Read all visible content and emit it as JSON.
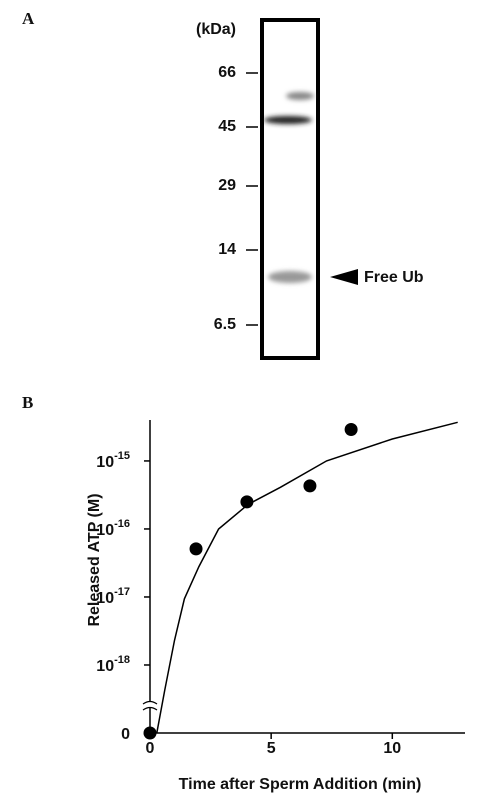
{
  "panel_a": {
    "label": "A",
    "unit": "(kDa)",
    "markers": [
      66,
      45,
      29,
      14,
      6.5
    ],
    "annotation": "Free Ub"
  },
  "chart_data": {
    "type": "scatter",
    "label": "B",
    "x_label": "Time after Sperm Addition (min)",
    "y_label": "Released ATP (M)",
    "x": [
      0,
      1.9,
      4.0,
      6.6,
      8.3
    ],
    "values": [
      0,
      5.1e-17,
      2.5e-16,
      4.3e-16,
      2.9e-15
    ],
    "color": "#000000",
    "curve": {
      "x": [
        0.28,
        0.61,
        1.01,
        1.42,
        2.02,
        2.83,
        4.05,
        5.38,
        7.29,
        10,
        12.7
      ],
      "values": [
        0,
        4.3e-19,
        2.3e-18,
        9.4e-18,
        2.8e-17,
        1e-16,
        2.3e-16,
        4.1e-16,
        1e-15,
        2.1e-15,
        3.7e-15
      ]
    },
    "xlim": [
      0,
      13
    ],
    "xticks": [
      0,
      5,
      10
    ],
    "ylim": [
      1e-19,
      4e-15
    ],
    "yscale": "log",
    "y_break": true,
    "yticks": [
      {
        "value": 0,
        "label": "0"
      },
      {
        "value": 1e-18,
        "label": "10^-18"
      },
      {
        "value": 1e-17,
        "label": "10^-17"
      },
      {
        "value": 1e-16,
        "label": "10^-16"
      },
      {
        "value": 1e-15,
        "label": "10^-15"
      }
    ]
  }
}
